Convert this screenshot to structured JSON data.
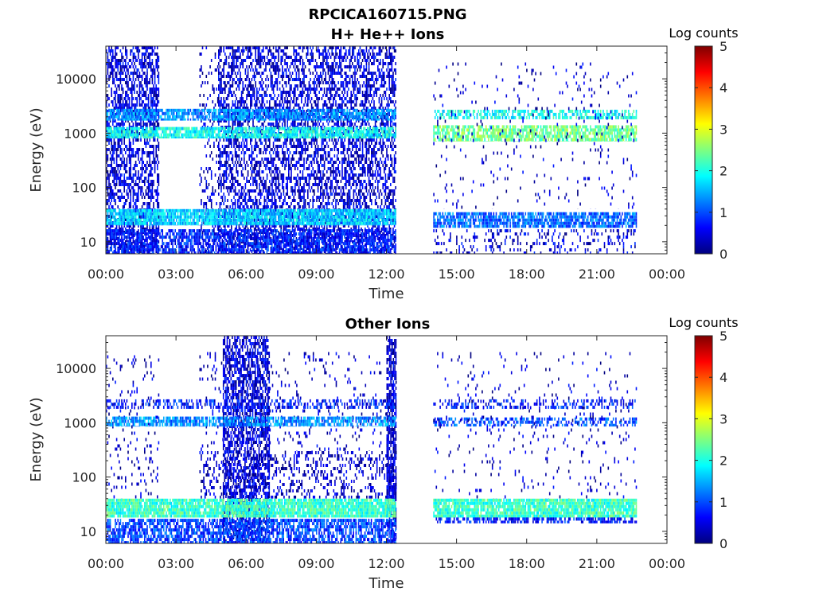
{
  "figure": {
    "title_line1": "RPCICA160715.PNG"
  },
  "colormap": {
    "stops": [
      "#00007f",
      "#0000ff",
      "#007fff",
      "#00ffff",
      "#7fff7f",
      "#ffff00",
      "#ff7f00",
      "#ff0000",
      "#7f0000"
    ]
  },
  "chart_data": [
    {
      "type": "heatmap",
      "title": "H+ He++ Ions",
      "xlabel": "Time",
      "ylabel": "Energy (eV)",
      "x_ticks": [
        "00:00",
        "03:00",
        "06:00",
        "09:00",
        "12:00",
        "15:00",
        "18:00",
        "21:00",
        "00:00"
      ],
      "xlim_hours": [
        0,
        24
      ],
      "y_scale": "log",
      "ylim": [
        6,
        40000
      ],
      "y_ticks": [
        "10",
        "100",
        "1000",
        "10000"
      ],
      "colorbar": {
        "label": "Log counts",
        "ticks": [
          "0",
          "1",
          "2",
          "3",
          "4",
          "5"
        ],
        "range": [
          0,
          5
        ]
      },
      "data_intervals_hours": [
        [
          0.0,
          2.25
        ],
        [
          4.0,
          12.4
        ],
        [
          14.0,
          22.7
        ]
      ],
      "bands": [
        {
          "hours": [
            0.0,
            2.25
          ],
          "energy_eV": [
            6,
            40000
          ],
          "log_counts": 0.3,
          "density": 0.55
        },
        {
          "hours": [
            4.0,
            4.8
          ],
          "energy_eV": [
            6,
            40000
          ],
          "log_counts": 0.2,
          "density": 0.15
        },
        {
          "hours": [
            4.8,
            12.4
          ],
          "energy_eV": [
            6,
            40000
          ],
          "log_counts": 0.3,
          "density": 0.5
        },
        {
          "hours": [
            0.0,
            12.4
          ],
          "energy_eV": [
            1700,
            2800
          ],
          "log_counts": 1.2,
          "density": 0.8
        },
        {
          "hours": [
            0.0,
            12.4
          ],
          "energy_eV": [
            800,
            1300
          ],
          "log_counts": 1.8,
          "density": 0.85
        },
        {
          "hours": [
            0.0,
            12.4
          ],
          "energy_eV": [
            20,
            40
          ],
          "log_counts": 1.5,
          "density": 0.9
        },
        {
          "hours": [
            0.0,
            12.4
          ],
          "energy_eV": [
            6,
            17
          ],
          "log_counts": 0.6,
          "density": 0.7
        },
        {
          "hours": [
            14.0,
            22.7
          ],
          "energy_eV": [
            1800,
            2700
          ],
          "log_counts": 1.8,
          "density": 0.6
        },
        {
          "hours": [
            14.0,
            22.7
          ],
          "energy_eV": [
            700,
            1400
          ],
          "log_counts": 2.3,
          "density": 0.75
        },
        {
          "hours": [
            14.0,
            22.7
          ],
          "energy_eV": [
            18,
            35
          ],
          "log_counts": 1.0,
          "density": 0.8
        },
        {
          "hours": [
            14.0,
            22.7
          ],
          "energy_eV": [
            6,
            17
          ],
          "log_counts": 0.3,
          "density": 0.2
        },
        {
          "hours": [
            14.0,
            22.7
          ],
          "energy_eV": [
            40,
            20000
          ],
          "log_counts": 0.2,
          "density": 0.04
        }
      ]
    },
    {
      "type": "heatmap",
      "title": "Other Ions",
      "xlabel": "Time",
      "ylabel": "Energy (eV)",
      "x_ticks": [
        "00:00",
        "03:00",
        "06:00",
        "09:00",
        "12:00",
        "15:00",
        "18:00",
        "21:00",
        "00:00"
      ],
      "xlim_hours": [
        0,
        24
      ],
      "y_scale": "log",
      "ylim": [
        6,
        40000
      ],
      "y_ticks": [
        "10",
        "100",
        "1000",
        "10000"
      ],
      "colorbar": {
        "label": "Log counts",
        "ticks": [
          "0",
          "1",
          "2",
          "3",
          "4",
          "5"
        ],
        "range": [
          0,
          5
        ]
      },
      "data_intervals_hours": [
        [
          0.0,
          2.25
        ],
        [
          4.0,
          12.4
        ],
        [
          14.0,
          22.7
        ]
      ],
      "bands": [
        {
          "hours": [
            5.0,
            7.0
          ],
          "energy_eV": [
            6,
            40000
          ],
          "log_counts": 0.3,
          "density": 0.6
        },
        {
          "hours": [
            12.0,
            12.4
          ],
          "energy_eV": [
            6,
            40000
          ],
          "log_counts": 0.3,
          "density": 0.7
        },
        {
          "hours": [
            0.0,
            2.25
          ],
          "energy_eV": [
            40,
            20000
          ],
          "log_counts": 0.2,
          "density": 0.08
        },
        {
          "hours": [
            4.0,
            12.4
          ],
          "energy_eV": [
            40,
            300
          ],
          "log_counts": 0.2,
          "density": 0.25
        },
        {
          "hours": [
            4.0,
            12.4
          ],
          "energy_eV": [
            300,
            20000
          ],
          "log_counts": 0.2,
          "density": 0.06
        },
        {
          "hours": [
            0.0,
            12.4
          ],
          "energy_eV": [
            1800,
            2700
          ],
          "log_counts": 0.6,
          "density": 0.4
        },
        {
          "hours": [
            0.0,
            12.4
          ],
          "energy_eV": [
            850,
            1300
          ],
          "log_counts": 1.2,
          "density": 0.7
        },
        {
          "hours": [
            0.0,
            12.4
          ],
          "energy_eV": [
            18,
            40
          ],
          "log_counts": 2.0,
          "density": 0.9
        },
        {
          "hours": [
            0.0,
            12.4
          ],
          "energy_eV": [
            6,
            17
          ],
          "log_counts": 0.8,
          "density": 0.7
        },
        {
          "hours": [
            14.0,
            22.7
          ],
          "energy_eV": [
            1800,
            2700
          ],
          "log_counts": 0.6,
          "density": 0.35
        },
        {
          "hours": [
            14.0,
            22.7
          ],
          "energy_eV": [
            850,
            1250
          ],
          "log_counts": 0.9,
          "density": 0.5
        },
        {
          "hours": [
            14.0,
            22.7
          ],
          "energy_eV": [
            18,
            40
          ],
          "log_counts": 2.0,
          "density": 0.9
        },
        {
          "hours": [
            14.0,
            22.7
          ],
          "energy_eV": [
            14,
            18
          ],
          "log_counts": 0.6,
          "density": 0.6
        },
        {
          "hours": [
            14.0,
            22.7
          ],
          "energy_eV": [
            40,
            20000
          ],
          "log_counts": 0.2,
          "density": 0.04
        }
      ]
    }
  ]
}
